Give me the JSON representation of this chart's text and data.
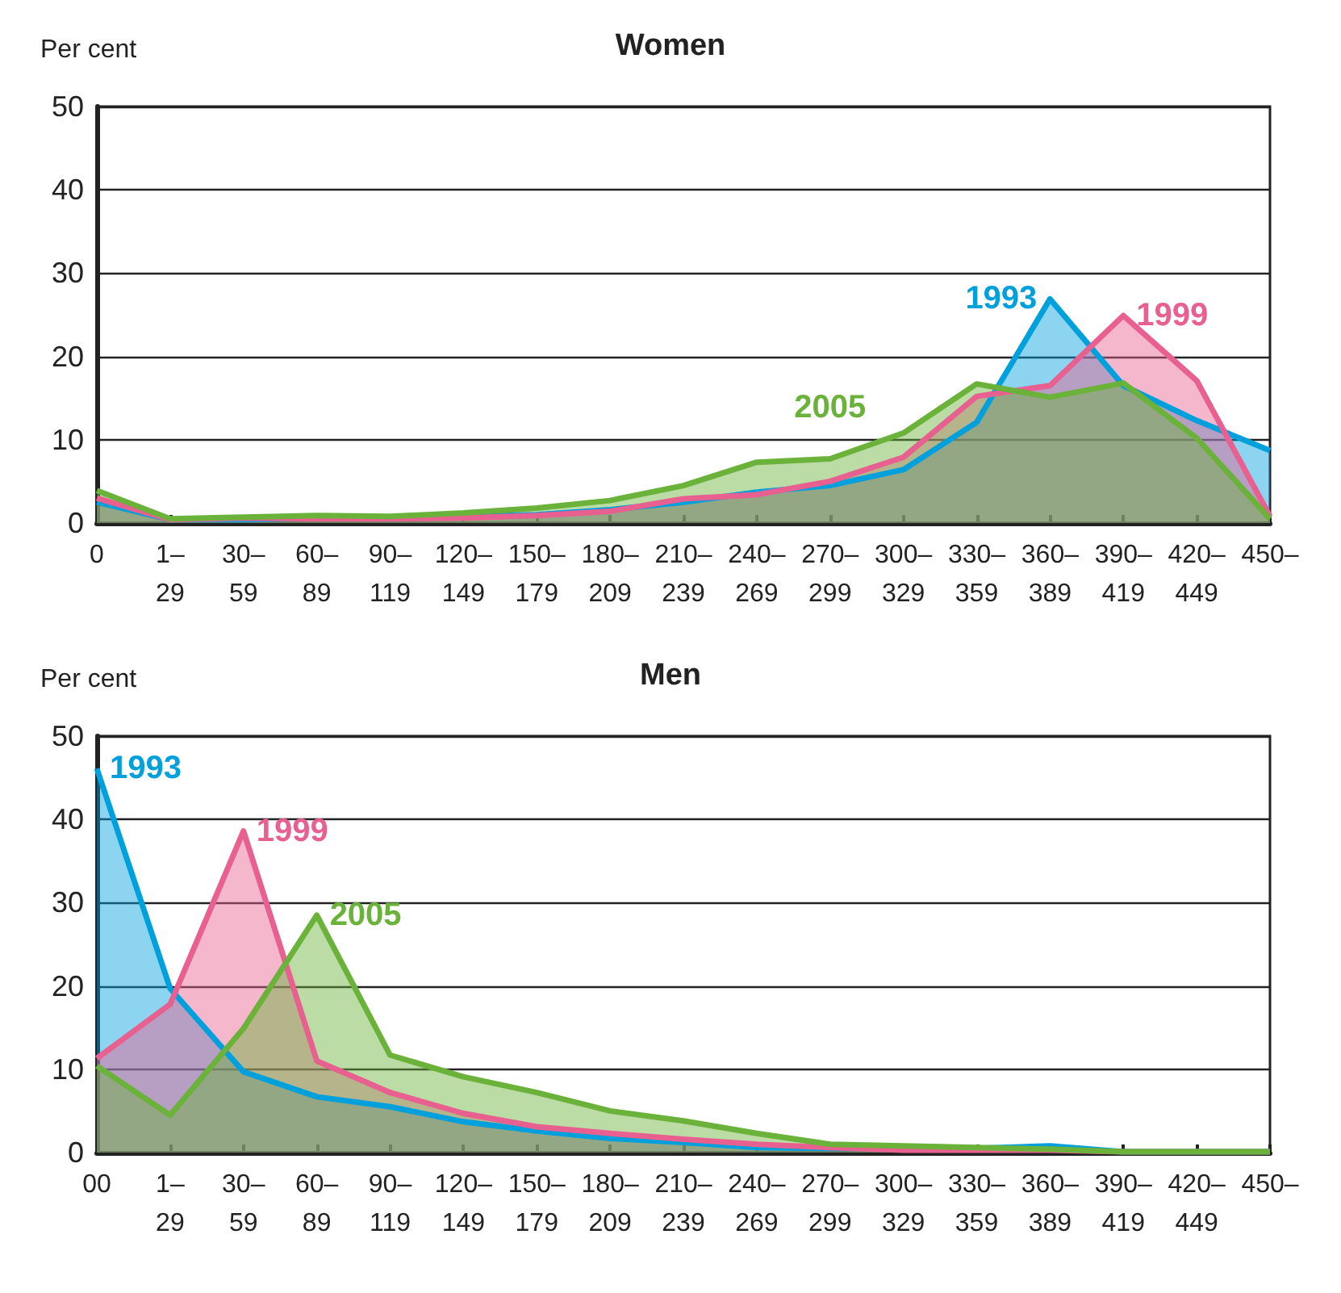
{
  "chart_data": [
    {
      "type": "area",
      "title": "Women",
      "ylabel": "Per cent",
      "categories": [
        "0",
        "1–\n29",
        "30–\n59",
        "60–\n89",
        "90–\n119",
        "120–\n149",
        "150–\n179",
        "180–\n209",
        "210–\n239",
        "240–\n269",
        "270–\n299",
        "300–\n329",
        "330–\n359",
        "360–\n389",
        "390–\n419",
        "420–\n449",
        "450–"
      ],
      "ylim": [
        0,
        50
      ],
      "yticks": [
        0,
        10,
        20,
        30,
        40,
        50
      ],
      "grid": "y",
      "legend": false,
      "series": [
        {
          "name": "1993",
          "color": "#00a0dc",
          "values": [
            2.5,
            0.4,
            0.4,
            0.6,
            0.7,
            0.8,
            1.0,
            1.6,
            2.5,
            3.7,
            4.5,
            6.4,
            12.1,
            26.9,
            16.5,
            12.3,
            8.7
          ]
        },
        {
          "name": "1999",
          "color": "#e8608f",
          "values": [
            3.0,
            0.4,
            0.6,
            0.5,
            0.5,
            0.6,
            0.9,
            1.4,
            2.9,
            3.4,
            5.0,
            7.9,
            15.2,
            16.5,
            24.9,
            17.1,
            0.8
          ]
        },
        {
          "name": "2005",
          "color": "#6ab23a",
          "values": [
            3.9,
            0.5,
            0.7,
            0.9,
            0.8,
            1.2,
            1.8,
            2.7,
            4.5,
            7.3,
            7.7,
            10.8,
            16.7,
            15.1,
            16.8,
            10.2,
            0.5
          ]
        }
      ]
    },
    {
      "type": "area",
      "title": "Men",
      "ylabel": "Per cent",
      "categories": [
        "00",
        "1–\n29",
        "30–\n59",
        "60–\n89",
        "90–\n119",
        "120–\n149",
        "150–\n179",
        "180–\n209",
        "210–\n239",
        "240–\n269",
        "270–\n299",
        "300–\n329",
        "330–\n359",
        "360–\n389",
        "390–\n419",
        "420–\n449",
        "450–"
      ],
      "ylim": [
        0,
        50
      ],
      "yticks": [
        0,
        10,
        20,
        30,
        40,
        50
      ],
      "grid": "y",
      "legend": false,
      "series": [
        {
          "name": "1993",
          "color": "#00a0dc",
          "values": [
            46.1,
            19.7,
            9.7,
            6.7,
            5.5,
            3.7,
            2.6,
            1.7,
            1.2,
            0.6,
            0.5,
            0.5,
            0.5,
            0.8,
            0.1,
            0.1,
            0.1
          ]
        },
        {
          "name": "1999",
          "color": "#e8608f",
          "values": [
            11.3,
            17.8,
            38.6,
            11.0,
            7.2,
            4.7,
            3.1,
            2.3,
            1.6,
            1.0,
            0.6,
            0.3,
            0.3,
            0.3,
            0.1,
            0.1,
            0.1
          ]
        },
        {
          "name": "2005",
          "color": "#6ab23a",
          "values": [
            10.4,
            4.5,
            14.9,
            28.5,
            11.7,
            9.1,
            7.2,
            5.0,
            3.8,
            2.3,
            1.0,
            0.8,
            0.6,
            0.4,
            0.1,
            0.1,
            0.1
          ]
        }
      ]
    }
  ]
}
